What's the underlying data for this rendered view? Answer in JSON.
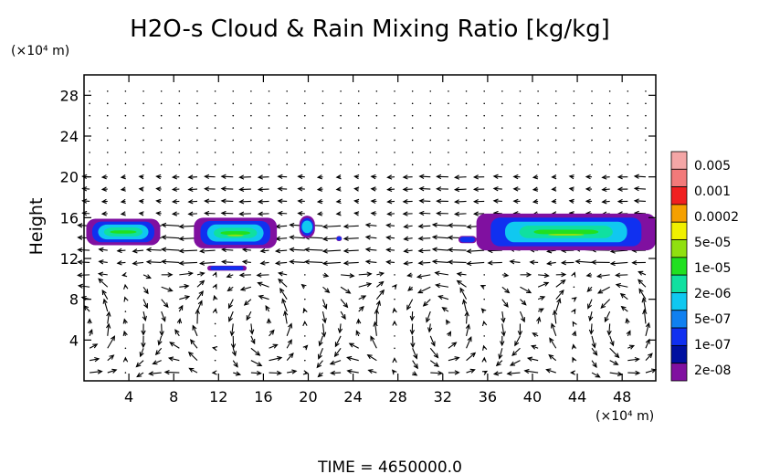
{
  "chart_data": {
    "type": "heatmap",
    "title": "H2O-s Cloud & Rain Mixing Ratio [kg/kg]",
    "ylabel": "Height",
    "x_unit_label": "(×10⁴ m)",
    "y_unit_label": "(×10⁴ m)",
    "xlim": [
      0,
      51
    ],
    "ylim": [
      0,
      30
    ],
    "x_ticks": [
      4,
      8,
      12,
      16,
      20,
      24,
      28,
      32,
      36,
      40,
      44,
      48
    ],
    "y_ticks": [
      4,
      8,
      12,
      16,
      20,
      24,
      28
    ],
    "colorbar": {
      "labels": [
        "0.005",
        "0.001",
        "0.0002",
        "5e-05",
        "1e-05",
        "2e-06",
        "5e-07",
        "1e-07",
        "2e-08"
      ],
      "colors": [
        "#f4a6a6",
        "#f27a7a",
        "#f02020",
        "#f5a000",
        "#f0f000",
        "#90e010",
        "#20e020",
        "#10e0a0",
        "#10c8f0",
        "#1080f0",
        "#1030f0",
        "#0010a0",
        "#8010a0"
      ]
    },
    "cloud_regions": [
      {
        "x": [
          0.2,
          6.8
        ],
        "y": [
          13.3,
          15.9
        ],
        "core": 5.0
      },
      {
        "x": [
          9.8,
          17.2
        ],
        "y": [
          13.0,
          16.0
        ],
        "core": 6.0
      },
      {
        "x": [
          11.0,
          14.5
        ],
        "y": [
          10.8,
          11.3
        ],
        "core": 1.0
      },
      {
        "x": [
          19.2,
          20.6
        ],
        "y": [
          14.0,
          16.2
        ],
        "core": 3.0
      },
      {
        "x": [
          22.5,
          23.0
        ],
        "y": [
          13.7,
          14.2
        ],
        "core": 1.0
      },
      {
        "x": [
          33.4,
          35.0
        ],
        "y": [
          13.5,
          14.2
        ],
        "core": 2.0
      },
      {
        "x": [
          35.0,
          51.0
        ],
        "y": [
          12.8,
          16.4
        ],
        "core": 7.0
      }
    ],
    "footer": "TIME = 4650000.0"
  }
}
